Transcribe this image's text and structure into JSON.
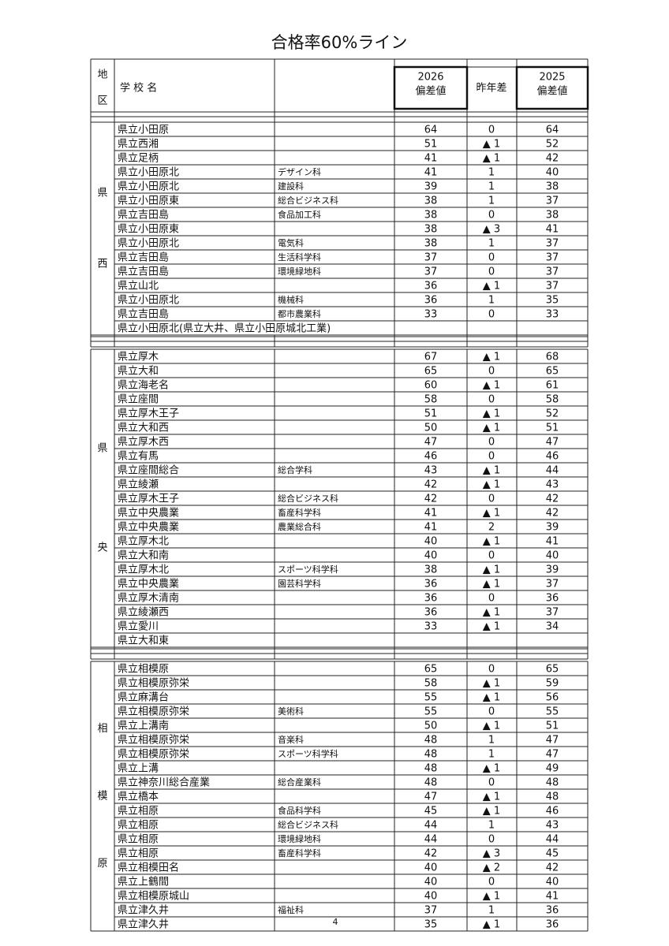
{
  "title": "合格率60%ライン",
  "header": {
    "region": [
      "地",
      "区"
    ],
    "school": "学 校 名",
    "col2026": [
      "2026",
      "偏差値"
    ],
    "diff": "昨年差",
    "col2025": [
      "2025",
      "偏差値"
    ]
  },
  "sections": [
    {
      "region": [
        "県",
        "西"
      ],
      "rows": [
        {
          "school": "県立小田原",
          "v2026": 64,
          "diff": "0",
          "v2025": 64
        },
        {
          "school": "県立西湘",
          "v2026": 51,
          "diff": "▲ 1",
          "v2025": 52
        },
        {
          "school": "県立足柄",
          "v2026": 41,
          "diff": "▲ 1",
          "v2025": 42
        },
        {
          "school": "県立小田原北",
          "dept": "デザイン科",
          "v2026": 41,
          "diff": "1",
          "v2025": 40
        },
        {
          "school": "県立小田原北",
          "dept": "建設科",
          "v2026": 39,
          "diff": "1",
          "v2025": 38
        },
        {
          "school": "県立小田原東",
          "dept": "総合ビジネス科",
          "v2026": 38,
          "diff": "1",
          "v2025": 37
        },
        {
          "school": "県立吉田島",
          "dept": "食品加工科",
          "v2026": 38,
          "diff": "0",
          "v2025": 38
        },
        {
          "school": "県立小田原東",
          "v2026": 38,
          "diff": "▲ 3",
          "v2025": 41
        },
        {
          "school": "県立小田原北",
          "dept": "電気科",
          "v2026": 38,
          "diff": "1",
          "v2025": 37
        },
        {
          "school": "県立吉田島",
          "dept": "生活科学科",
          "v2026": 37,
          "diff": "0",
          "v2025": 37
        },
        {
          "school": "県立吉田島",
          "dept": "環境緑地科",
          "v2026": 37,
          "diff": "0",
          "v2025": 37
        },
        {
          "school": "県立山北",
          "v2026": 36,
          "diff": "▲ 1",
          "v2025": 37
        },
        {
          "school": "県立小田原北",
          "dept": "機械科",
          "v2026": 36,
          "diff": "1",
          "v2025": 35
        },
        {
          "school": "県立吉田島",
          "dept": "都市農業科",
          "v2026": 33,
          "diff": "0",
          "v2025": 33
        },
        {
          "school": "県立小田原北(県立大井、県立小田原城北工業)",
          "span": true
        }
      ]
    },
    {
      "region": [
        "県",
        "央"
      ],
      "rows": [
        {
          "school": "県立厚木",
          "v2026": 67,
          "diff": "▲ 1",
          "v2025": 68
        },
        {
          "school": "県立大和",
          "v2026": 65,
          "diff": "0",
          "v2025": 65
        },
        {
          "school": "県立海老名",
          "v2026": 60,
          "diff": "▲ 1",
          "v2025": 61
        },
        {
          "school": "県立座間",
          "v2026": 58,
          "diff": "0",
          "v2025": 58
        },
        {
          "school": "県立厚木王子",
          "v2026": 51,
          "diff": "▲ 1",
          "v2025": 52
        },
        {
          "school": "県立大和西",
          "v2026": 50,
          "diff": "▲ 1",
          "v2025": 51
        },
        {
          "school": "県立厚木西",
          "v2026": 47,
          "diff": "0",
          "v2025": 47
        },
        {
          "school": "県立有馬",
          "v2026": 46,
          "diff": "0",
          "v2025": 46
        },
        {
          "school": "県立座間総合",
          "dept": "総合学科",
          "v2026": 43,
          "diff": "▲ 1",
          "v2025": 44
        },
        {
          "school": "県立綾瀬",
          "v2026": 42,
          "diff": "▲ 1",
          "v2025": 43
        },
        {
          "school": "県立厚木王子",
          "dept": "総合ビジネス科",
          "v2026": 42,
          "diff": "0",
          "v2025": 42
        },
        {
          "school": "県立中央農業",
          "dept": "畜産科学科",
          "v2026": 41,
          "diff": "▲ 1",
          "v2025": 42
        },
        {
          "school": "県立中央農業",
          "dept": "農業総合科",
          "v2026": 41,
          "diff": "2",
          "v2025": 39
        },
        {
          "school": "県立厚木北",
          "v2026": 40,
          "diff": "▲ 1",
          "v2025": 41
        },
        {
          "school": "県立大和南",
          "v2026": 40,
          "diff": "0",
          "v2025": 40
        },
        {
          "school": "県立厚木北",
          "dept": "スポーツ科学科",
          "v2026": 38,
          "diff": "▲ 1",
          "v2025": 39
        },
        {
          "school": "県立中央農業",
          "dept": "園芸科学科",
          "v2026": 36,
          "diff": "▲ 1",
          "v2025": 37
        },
        {
          "school": "県立厚木清南",
          "v2026": 36,
          "diff": "0",
          "v2025": 36
        },
        {
          "school": "県立綾瀬西",
          "v2026": 36,
          "diff": "▲ 1",
          "v2025": 37
        },
        {
          "school": "県立愛川",
          "v2026": 33,
          "diff": "▲ 1",
          "v2025": 34
        },
        {
          "school": "県立大和東"
        }
      ]
    },
    {
      "region": [
        "相",
        "模",
        "原"
      ],
      "rows": [
        {
          "school": "県立相模原",
          "v2026": 65,
          "diff": "0",
          "v2025": 65
        },
        {
          "school": "県立相模原弥栄",
          "v2026": 58,
          "diff": "▲ 1",
          "v2025": 59
        },
        {
          "school": "県立麻溝台",
          "v2026": 55,
          "diff": "▲ 1",
          "v2025": 56
        },
        {
          "school": "県立相模原弥栄",
          "dept": "美術科",
          "v2026": 55,
          "diff": "0",
          "v2025": 55
        },
        {
          "school": "県立上溝南",
          "v2026": 50,
          "diff": "▲ 1",
          "v2025": 51
        },
        {
          "school": "県立相模原弥栄",
          "dept": "音楽科",
          "v2026": 48,
          "diff": "1",
          "v2025": 47
        },
        {
          "school": "県立相模原弥栄",
          "dept": "スポーツ科学科",
          "v2026": 48,
          "diff": "1",
          "v2025": 47
        },
        {
          "school": "県立上溝",
          "v2026": 48,
          "diff": "▲ 1",
          "v2025": 49
        },
        {
          "school": "県立神奈川総合産業",
          "dept": "総合産業科",
          "v2026": 48,
          "diff": "0",
          "v2025": 48
        },
        {
          "school": "県立橋本",
          "v2026": 47,
          "diff": "▲ 1",
          "v2025": 48
        },
        {
          "school": "県立相原",
          "dept": "食品科学科",
          "v2026": 45,
          "diff": "▲ 1",
          "v2025": 46
        },
        {
          "school": "県立相原",
          "dept": "総合ビジネス科",
          "v2026": 44,
          "diff": "1",
          "v2025": 43
        },
        {
          "school": "県立相原",
          "dept": "環境緑地科",
          "v2026": 44,
          "diff": "0",
          "v2025": 44
        },
        {
          "school": "県立相原",
          "dept": "畜産科学科",
          "v2026": 42,
          "diff": "▲ 3",
          "v2025": 45
        },
        {
          "school": "県立相模田名",
          "v2026": 40,
          "diff": "▲ 2",
          "v2025": 42
        },
        {
          "school": "県立上鶴間",
          "v2026": 40,
          "diff": "0",
          "v2025": 40
        },
        {
          "school": "県立相模原城山",
          "v2026": 40,
          "diff": "▲ 1",
          "v2025": 41
        },
        {
          "school": "県立津久井",
          "dept": "福祉科",
          "v2026": 37,
          "diff": "1",
          "v2025": 36
        },
        {
          "school": "県立津久井",
          "v2026": 35,
          "diff": "▲ 1",
          "v2025": 36
        }
      ]
    }
  ],
  "page_number": "4"
}
